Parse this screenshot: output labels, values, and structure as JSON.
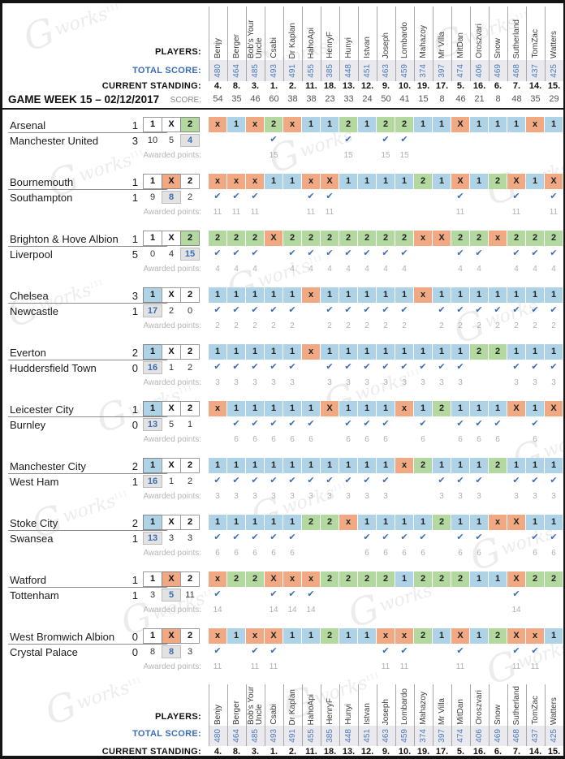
{
  "labels": {
    "players": "PLAYERS:",
    "total_score": "TOTAL SCORE:",
    "current_standing": "CURRENT STANDING:",
    "game_week": "GAME WEEK 15 – 02/12/2017",
    "score": "SCORE:",
    "awarded_points": "Awarded points:"
  },
  "watermark": {
    "glyph": "G",
    "text": "works",
    "tm": "111"
  },
  "colors": {
    "one": "#aed3e6",
    "draw": "#f1a983",
    "two": "#b4d9a0",
    "accent_blue": "#3a6db5",
    "band_bg": "#e9e9ee",
    "count_highlight_bg": "#e2e2e2"
  },
  "outcomes": [
    "1",
    "X",
    "2"
  ],
  "check_icon": "✔",
  "players": [
    {
      "name": "Benjy",
      "total": "480",
      "standing": "4.",
      "week_score": "54"
    },
    {
      "name": "Berger",
      "total": "464",
      "standing": "8.",
      "week_score": "35"
    },
    {
      "name": "Bob's Your Uncle",
      "total": "485",
      "standing": "3.",
      "week_score": "46"
    },
    {
      "name": "Csabi",
      "total": "493",
      "standing": "1.",
      "week_score": "60"
    },
    {
      "name": "Dr Kaplan",
      "total": "491",
      "standing": "2.",
      "week_score": "38"
    },
    {
      "name": "HahoApi",
      "total": "455",
      "standing": "11.",
      "week_score": "38"
    },
    {
      "name": "HenryF",
      "total": "385",
      "standing": "18.",
      "week_score": "23"
    },
    {
      "name": "Hunyi",
      "total": "448",
      "standing": "13.",
      "week_score": "33"
    },
    {
      "name": "Istvan",
      "total": "451",
      "standing": "12.",
      "week_score": "24"
    },
    {
      "name": "Joseph",
      "total": "463",
      "standing": "9.",
      "week_score": "50"
    },
    {
      "name": "Lombardo",
      "total": "459",
      "standing": "10.",
      "week_score": "41"
    },
    {
      "name": "Mahazoy",
      "total": "374",
      "standing": "19.",
      "week_score": "15"
    },
    {
      "name": "Mr Villa",
      "total": "397",
      "standing": "17.",
      "week_score": "8"
    },
    {
      "name": "MitDan",
      "total": "474",
      "standing": "5.",
      "week_score": "46"
    },
    {
      "name": "Oroszvari",
      "total": "406",
      "standing": "16.",
      "week_score": "21"
    },
    {
      "name": "Snow",
      "total": "469",
      "standing": "6.",
      "week_score": "8"
    },
    {
      "name": "Sutherland",
      "total": "468",
      "standing": "7.",
      "week_score": "48"
    },
    {
      "name": "TomZac",
      "total": "437",
      "standing": "14.",
      "week_score": "35"
    },
    {
      "name": "Watters",
      "total": "425",
      "standing": "15.",
      "week_score": "29"
    }
  ],
  "matches": [
    {
      "home": "Arsenal",
      "home_score": "1",
      "away": "Manchester United",
      "away_score": "3",
      "result": "2",
      "counts": [
        "10",
        "5",
        "4"
      ],
      "points": "15",
      "predictions": [
        "x",
        "1",
        "x",
        "2",
        "x",
        "1",
        "1",
        "2",
        "1",
        "2",
        "2",
        "1",
        "1",
        "X",
        "1",
        "1",
        "1",
        "x",
        "1"
      ]
    },
    {
      "home": "Bournemouth",
      "home_score": "1",
      "away": "Southampton",
      "away_score": "1",
      "result": "X",
      "counts": [
        "9",
        "8",
        "2"
      ],
      "points": "11",
      "predictions": [
        "x",
        "x",
        "x",
        "1",
        "1",
        "x",
        "X",
        "1",
        "1",
        "1",
        "1",
        "2",
        "1",
        "X",
        "1",
        "2",
        "X",
        "1",
        "X"
      ]
    },
    {
      "home": "Brighton & Hove Albion",
      "home_score": "1",
      "away": "Liverpool",
      "away_score": "5",
      "result": "2",
      "counts": [
        "0",
        "4",
        "15"
      ],
      "points": "4",
      "predictions": [
        "2",
        "2",
        "2",
        "X",
        "2",
        "2",
        "2",
        "2",
        "2",
        "2",
        "2",
        "x",
        "X",
        "2",
        "2",
        "x",
        "2",
        "2",
        "2"
      ]
    },
    {
      "home": "Chelsea",
      "home_score": "3",
      "away": "Newcastle",
      "away_score": "1",
      "result": "1",
      "counts": [
        "17",
        "2",
        "0"
      ],
      "points": "2",
      "predictions": [
        "1",
        "1",
        "1",
        "1",
        "1",
        "x",
        "1",
        "1",
        "1",
        "1",
        "1",
        "x",
        "1",
        "1",
        "1",
        "1",
        "1",
        "1",
        "1"
      ]
    },
    {
      "home": "Everton",
      "home_score": "2",
      "away": "Huddersfield Town",
      "away_score": "0",
      "result": "1",
      "counts": [
        "16",
        "1",
        "2"
      ],
      "points": "3",
      "predictions": [
        "1",
        "1",
        "1",
        "1",
        "1",
        "x",
        "1",
        "1",
        "1",
        "1",
        "1",
        "1",
        "1",
        "1",
        "2",
        "2",
        "1",
        "1",
        "1"
      ]
    },
    {
      "home": "Leicester City",
      "home_score": "1",
      "away": "Burnley",
      "away_score": "0",
      "result": "1",
      "counts": [
        "13",
        "5",
        "1"
      ],
      "points": "6",
      "predictions": [
        "x",
        "1",
        "1",
        "1",
        "1",
        "1",
        "X",
        "1",
        "1",
        "1",
        "x",
        "1",
        "2",
        "1",
        "1",
        "1",
        "X",
        "1",
        "X"
      ]
    },
    {
      "home": "Manchester City",
      "home_score": "2",
      "away": "West Ham",
      "away_score": "1",
      "result": "1",
      "counts": [
        "16",
        "1",
        "2"
      ],
      "points": "3",
      "predictions": [
        "1",
        "1",
        "1",
        "1",
        "1",
        "1",
        "1",
        "1",
        "1",
        "1",
        "x",
        "2",
        "1",
        "1",
        "1",
        "2",
        "1",
        "1",
        "1"
      ]
    },
    {
      "home": "Stoke City",
      "home_score": "2",
      "away": "Swansea",
      "away_score": "1",
      "result": "1",
      "counts": [
        "13",
        "3",
        "3"
      ],
      "points": "6",
      "predictions": [
        "1",
        "1",
        "1",
        "1",
        "1",
        "2",
        "2",
        "x",
        "1",
        "1",
        "1",
        "1",
        "2",
        "1",
        "1",
        "x",
        "X",
        "1",
        "1"
      ]
    },
    {
      "home": "Watford",
      "home_score": "1",
      "away": "Tottenham",
      "away_score": "1",
      "result": "X",
      "counts": [
        "3",
        "5",
        "11"
      ],
      "points": "14",
      "predictions": [
        "x",
        "2",
        "2",
        "X",
        "x",
        "x",
        "2",
        "2",
        "2",
        "2",
        "1",
        "2",
        "2",
        "2",
        "1",
        "1",
        "X",
        "2",
        "2"
      ]
    },
    {
      "home": "West Bromwich Albion",
      "home_score": "0",
      "away": "Crystal Palace",
      "away_score": "0",
      "result": "X",
      "counts": [
        "8",
        "8",
        "3"
      ],
      "points": "11",
      "predictions": [
        "x",
        "1",
        "x",
        "X",
        "1",
        "1",
        "2",
        "1",
        "1",
        "x",
        "x",
        "2",
        "1",
        "X",
        "1",
        "2",
        "X",
        "x",
        "1"
      ]
    }
  ]
}
